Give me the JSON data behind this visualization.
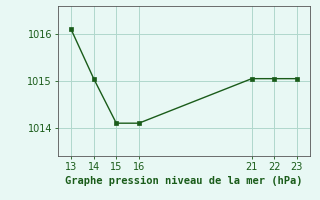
{
  "x": [
    13,
    14,
    15,
    16,
    21,
    22,
    23
  ],
  "y": [
    1016.1,
    1015.05,
    1014.1,
    1014.1,
    1015.05,
    1015.05,
    1015.05
  ],
  "line_color": "#1a5c1a",
  "marker": "s",
  "marker_size": 3,
  "background_color": "#e8f8f4",
  "grid_color": "#b0d8cc",
  "xlabel": "Graphe pression niveau de la mer (hPa)",
  "xlabel_color": "#1a5c1a",
  "xlabel_fontsize": 7.5,
  "xticks": [
    13,
    14,
    15,
    16,
    21,
    22,
    23
  ],
  "yticks": [
    1014,
    1015,
    1016
  ],
  "ylim": [
    1013.4,
    1016.6
  ],
  "xlim": [
    12.4,
    23.6
  ],
  "tick_fontsize": 7,
  "tick_color": "#1a5c1a",
  "spine_color": "#555555"
}
